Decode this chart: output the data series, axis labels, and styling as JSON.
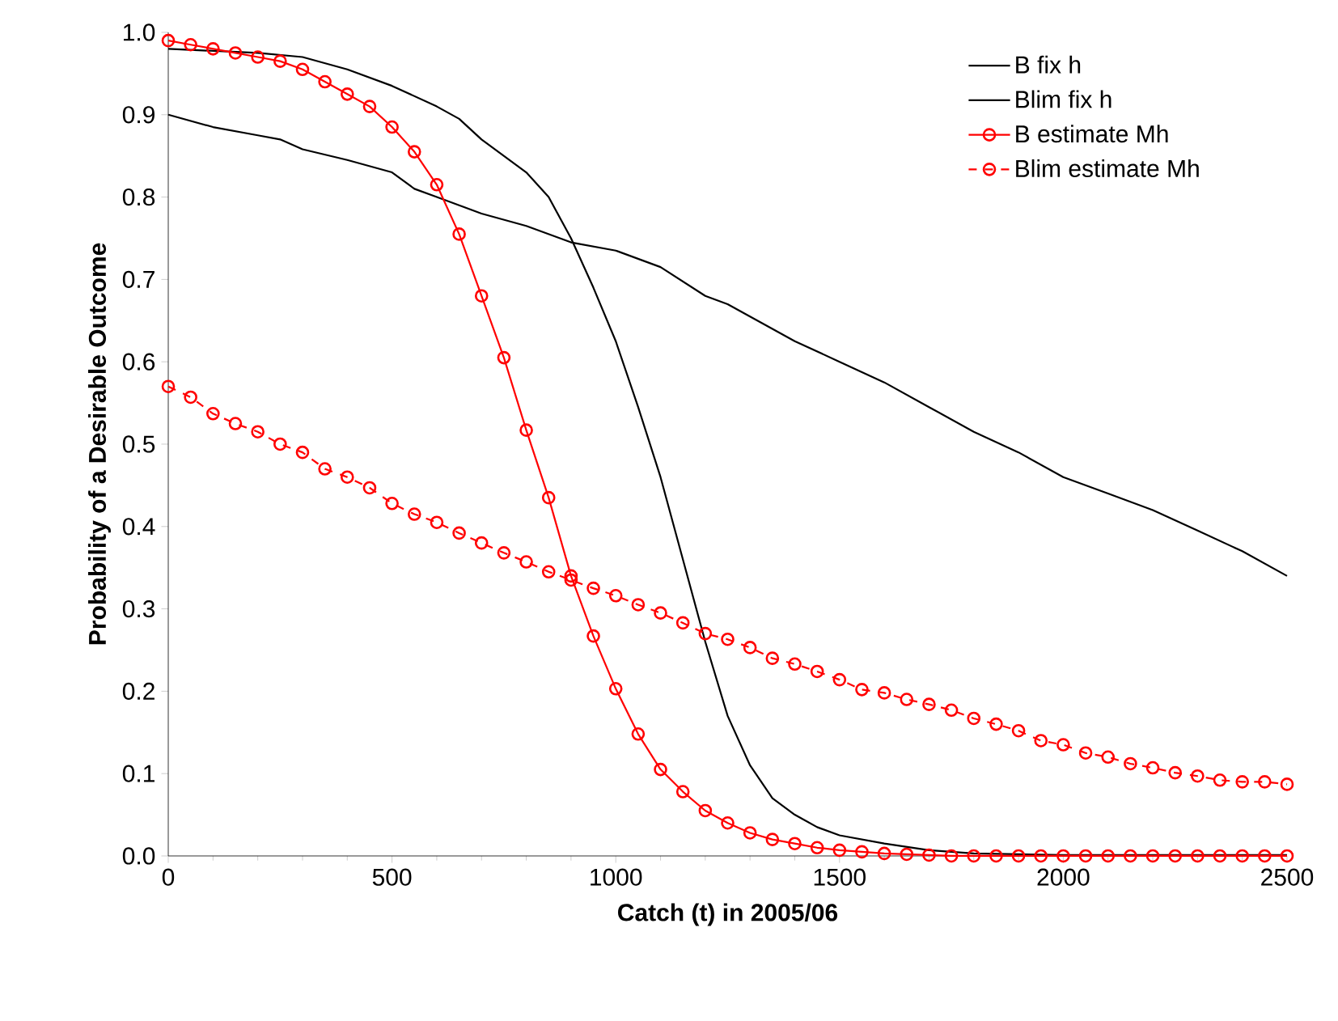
{
  "chart_data": {
    "type": "line",
    "xlabel": "Catch (t) in 2005/06",
    "ylabel": "Probability of a Desirable Outcome",
    "xlim": [
      0,
      2500
    ],
    "xticks": [
      0,
      500,
      1000,
      1500,
      2000,
      2500
    ],
    "ylim": [
      0,
      1.0
    ],
    "yticks": [
      {
        "value": 0,
        "label": "0.0"
      },
      {
        "value": 0.1,
        "label": "0.1"
      },
      {
        "value": 0.2,
        "label": "0.2"
      },
      {
        "value": 0.3,
        "label": "0.3"
      },
      {
        "value": 0.4,
        "label": "0.4"
      },
      {
        "value": 0.5,
        "label": "0.5"
      },
      {
        "value": 0.6,
        "label": "0.6"
      },
      {
        "value": 0.7,
        "label": "0.7"
      },
      {
        "value": 0.8,
        "label": "0.8"
      },
      {
        "value": 0.9,
        "label": "0.9"
      },
      {
        "value": 1.0,
        "label": "1.0"
      }
    ],
    "grid": false,
    "legend": "top right",
    "series": [
      {
        "name": "B fix h",
        "color": "#000000",
        "marker": "none",
        "line_style": "solid",
        "x": [
          0,
          200,
          300,
          400,
          500,
          600,
          650,
          700,
          800,
          850,
          900,
          950,
          1000,
          1050,
          1100,
          1150,
          1200,
          1250,
          1300,
          1350,
          1400,
          1450,
          1500,
          1600,
          1700,
          1800,
          1900,
          2000,
          2500
        ],
        "values": [
          0.98,
          0.975,
          0.97,
          0.955,
          0.935,
          0.91,
          0.895,
          0.87,
          0.83,
          0.8,
          0.75,
          0.69,
          0.625,
          0.545,
          0.46,
          0.36,
          0.26,
          0.17,
          0.11,
          0.07,
          0.05,
          0.035,
          0.025,
          0.015,
          0.007,
          0.003,
          0.002,
          0.001,
          0.001
        ]
      },
      {
        "name": "Blim fix h",
        "color": "#000000",
        "marker": "none",
        "line_style": "solid",
        "x": [
          0,
          100,
          200,
          250,
          300,
          400,
          500,
          550,
          600,
          650,
          700,
          800,
          900,
          1000,
          1100,
          1200,
          1250,
          1300,
          1400,
          1500,
          1600,
          1700,
          1800,
          1900,
          2000,
          2100,
          2200,
          2300,
          2400,
          2500
        ],
        "values": [
          0.9,
          0.885,
          0.875,
          0.87,
          0.858,
          0.845,
          0.83,
          0.81,
          0.8,
          0.79,
          0.78,
          0.765,
          0.745,
          0.735,
          0.715,
          0.68,
          0.67,
          0.655,
          0.625,
          0.6,
          0.575,
          0.545,
          0.515,
          0.49,
          0.46,
          0.44,
          0.42,
          0.395,
          0.37,
          0.34
        ]
      },
      {
        "name": "B estimate Mh",
        "color": "#ff0000",
        "marker": "circle",
        "line_style": "solid",
        "x": [
          0,
          50,
          100,
          150,
          200,
          250,
          300,
          350,
          400,
          450,
          500,
          550,
          600,
          650,
          700,
          750,
          800,
          850,
          900,
          950,
          1000,
          1050,
          1100,
          1150,
          1200,
          1250,
          1300,
          1350,
          1400,
          1450,
          1500,
          1550,
          1600,
          1650,
          1700,
          1750,
          1800,
          1850,
          1900,
          1950,
          2000,
          2050,
          2100,
          2150,
          2200,
          2250,
          2300,
          2350,
          2400,
          2450,
          2500
        ],
        "values": [
          0.99,
          0.985,
          0.98,
          0.975,
          0.97,
          0.965,
          0.955,
          0.94,
          0.925,
          0.91,
          0.885,
          0.855,
          0.815,
          0.755,
          0.68,
          0.605,
          0.517,
          0.435,
          0.34,
          0.267,
          0.203,
          0.148,
          0.105,
          0.078,
          0.055,
          0.04,
          0.028,
          0.02,
          0.015,
          0.01,
          0.007,
          0.005,
          0.003,
          0.002,
          0.001,
          0,
          0,
          0,
          0,
          0,
          0,
          0,
          0,
          0,
          0,
          0,
          0,
          0,
          0,
          0,
          0
        ]
      },
      {
        "name": "Blim estimate Mh",
        "color": "#ff0000",
        "marker": "circle",
        "line_style": "dashed",
        "x": [
          0,
          50,
          100,
          150,
          200,
          250,
          300,
          350,
          400,
          450,
          500,
          550,
          600,
          650,
          700,
          750,
          800,
          850,
          900,
          950,
          1000,
          1050,
          1100,
          1150,
          1200,
          1250,
          1300,
          1350,
          1400,
          1450,
          1500,
          1550,
          1600,
          1650,
          1700,
          1750,
          1800,
          1850,
          1900,
          1950,
          2000,
          2050,
          2100,
          2150,
          2200,
          2250,
          2300,
          2350,
          2400,
          2450,
          2500
        ],
        "values": [
          0.57,
          0.557,
          0.537,
          0.525,
          0.515,
          0.5,
          0.49,
          0.47,
          0.46,
          0.447,
          0.428,
          0.415,
          0.405,
          0.392,
          0.38,
          0.368,
          0.357,
          0.345,
          0.335,
          0.325,
          0.316,
          0.305,
          0.295,
          0.283,
          0.27,
          0.263,
          0.253,
          0.24,
          0.233,
          0.224,
          0.214,
          0.202,
          0.198,
          0.19,
          0.184,
          0.177,
          0.167,
          0.16,
          0.152,
          0.14,
          0.135,
          0.125,
          0.12,
          0.112,
          0.107,
          0.101,
          0.097,
          0.092,
          0.09,
          0.09,
          0.087
        ]
      }
    ]
  }
}
